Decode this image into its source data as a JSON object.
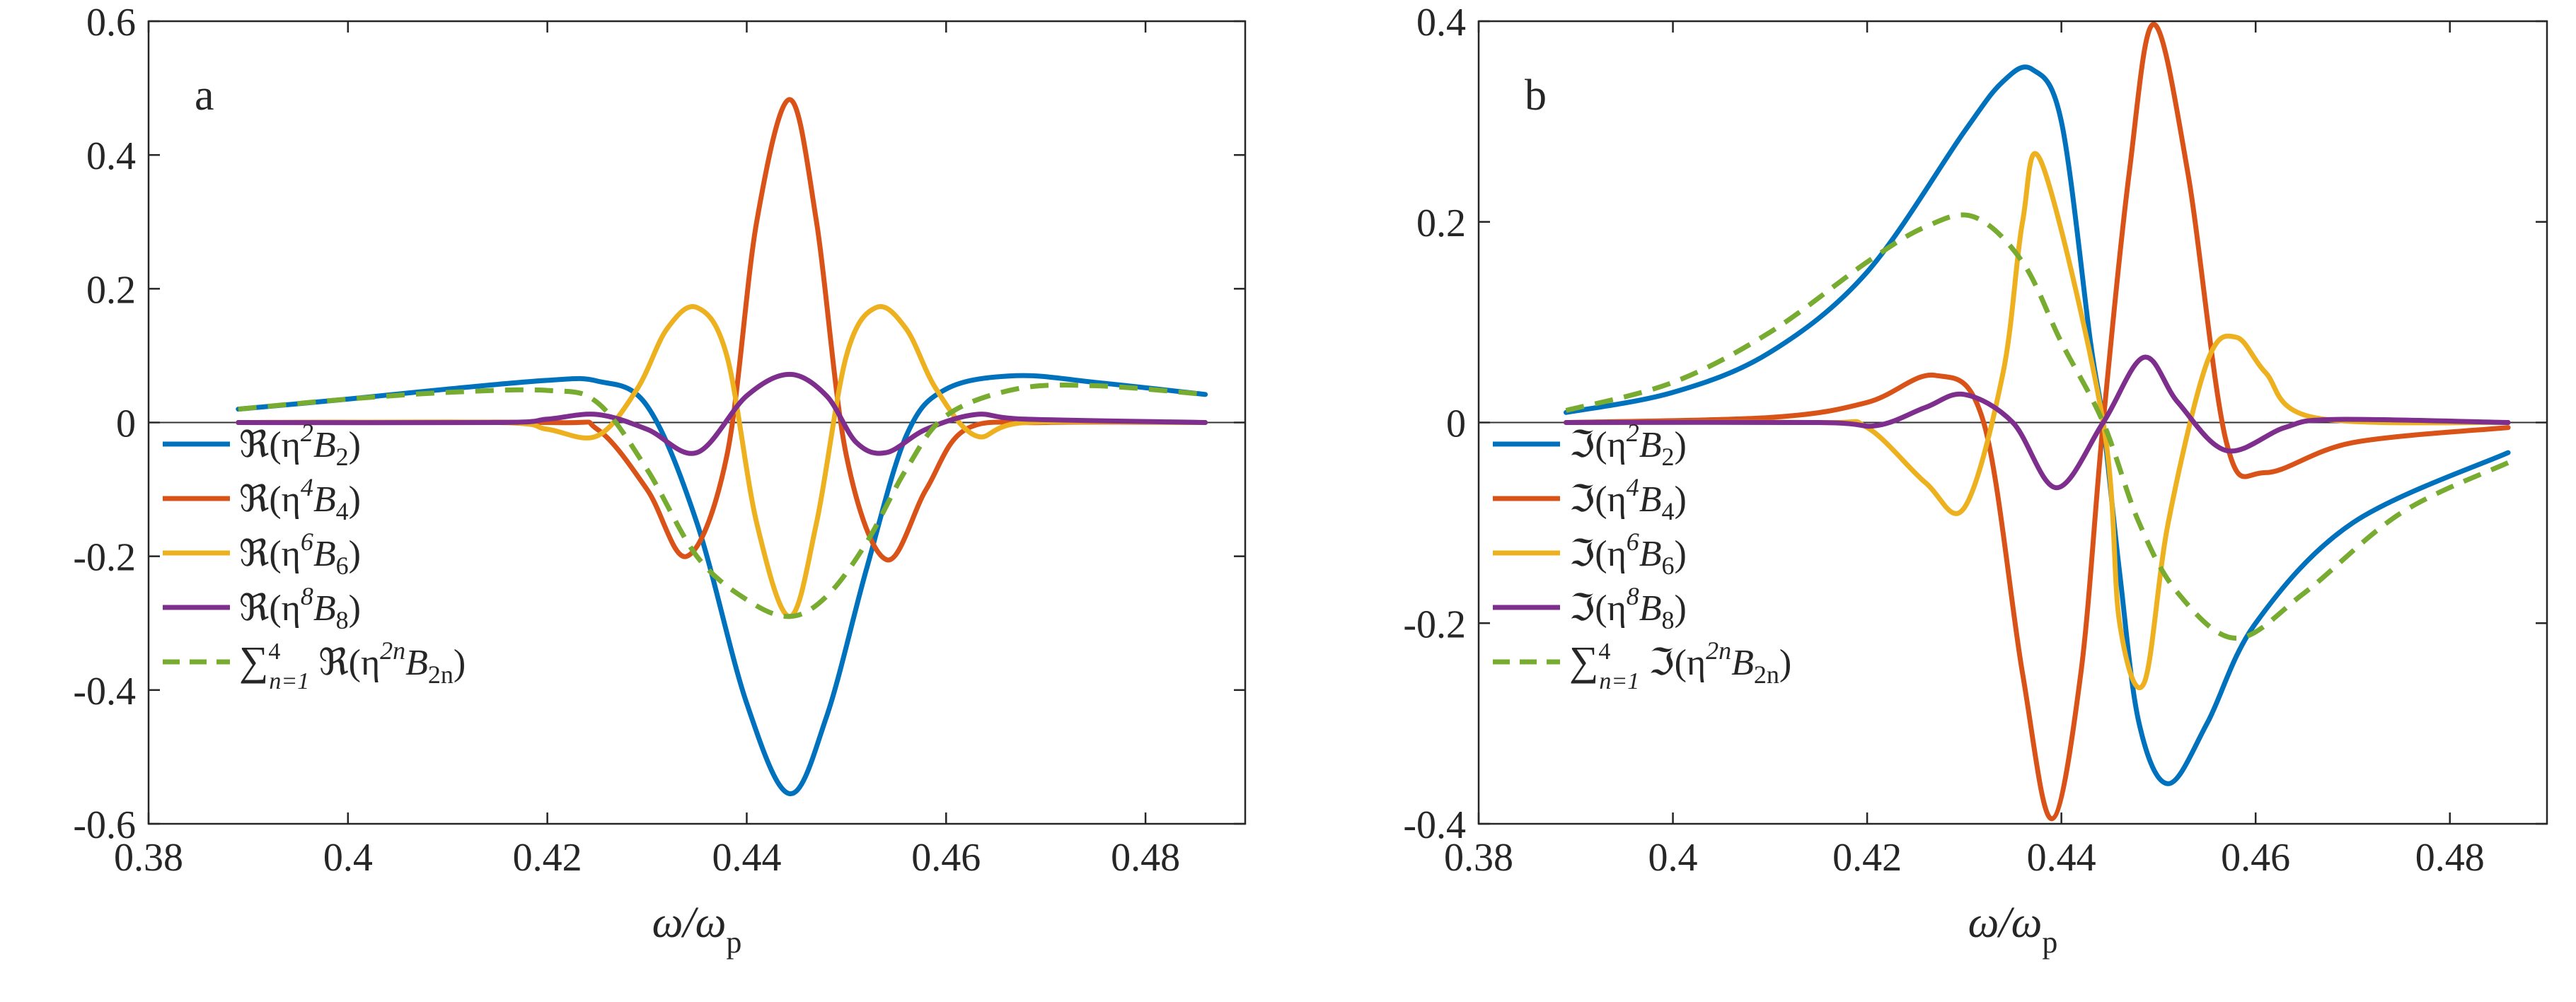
{
  "chart_data": [
    {
      "type": "line",
      "panel_label": "a",
      "xlabel": "ω/ω_p",
      "xlabel_parts": {
        "main": "ω/ω",
        "sub": "p"
      },
      "xlim": [
        0.38,
        0.49
      ],
      "ylim": [
        -0.6,
        0.6
      ],
      "xticks": [
        "0.38",
        "0.4",
        "0.42",
        "0.44",
        "0.46",
        "0.48"
      ],
      "yticks": [
        "-0.6",
        "-0.4",
        "-0.2",
        "0",
        "0.2",
        "0.4",
        "0.6"
      ],
      "zero_line": true,
      "legend_location": "lower-left",
      "series": [
        {
          "name": "ℜ(η²B₂)",
          "label": {
            "op": "ℜ",
            "pow": "2",
            "idx": "2"
          },
          "color": "#0072BD",
          "dash": false,
          "x": [
            0.389,
            0.4,
            0.41,
            0.42,
            0.425,
            0.43,
            0.435,
            0.44,
            0.4443,
            0.448,
            0.452,
            0.456,
            0.46,
            0.467,
            0.475,
            0.486
          ],
          "y": [
            0.02,
            0.035,
            0.05,
            0.063,
            0.062,
            0.025,
            -0.15,
            -0.42,
            -0.555,
            -0.44,
            -0.22,
            -0.02,
            0.05,
            0.07,
            0.06,
            0.042
          ]
        },
        {
          "name": "ℜ(η⁴B₄)",
          "label": {
            "op": "ℜ",
            "pow": "4",
            "idx": "4"
          },
          "color": "#D95319",
          "dash": false,
          "x": [
            0.389,
            0.42,
            0.425,
            0.43,
            0.434,
            0.438,
            0.441,
            0.4443,
            0.447,
            0.45,
            0.454,
            0.458,
            0.462,
            0.47,
            0.486
          ],
          "y": [
            0,
            0,
            -0.01,
            -0.1,
            -0.2,
            -0.05,
            0.3,
            0.483,
            0.3,
            -0.05,
            -0.205,
            -0.1,
            -0.01,
            0,
            0
          ]
        },
        {
          "name": "ℜ(η⁶B₆)",
          "label": {
            "op": "ℜ",
            "pow": "6",
            "idx": "6"
          },
          "color": "#EDB120",
          "dash": false,
          "x": [
            0.389,
            0.415,
            0.42,
            0.425,
            0.429,
            0.432,
            0.435,
            0.438,
            0.441,
            0.4443,
            0.447,
            0.45,
            0.453,
            0.456,
            0.459,
            0.463,
            0.468,
            0.486
          ],
          "y": [
            0,
            0,
            -0.01,
            -0.02,
            0.05,
            0.14,
            0.172,
            0.1,
            -0.15,
            -0.29,
            -0.15,
            0.1,
            0.172,
            0.14,
            0.05,
            -0.02,
            0,
            0
          ]
        },
        {
          "name": "ℜ(η⁸B₈)",
          "label": {
            "op": "ℜ",
            "pow": "8",
            "idx": "8"
          },
          "color": "#7E2F8E",
          "dash": false,
          "x": [
            0.389,
            0.415,
            0.42,
            0.425,
            0.43,
            0.435,
            0.44,
            0.4443,
            0.448,
            0.451,
            0.454,
            0.458,
            0.463,
            0.468,
            0.486
          ],
          "y": [
            0,
            0,
            0.005,
            0.012,
            -0.01,
            -0.045,
            0.04,
            0.072,
            0.04,
            -0.03,
            -0.045,
            -0.01,
            0.012,
            0.005,
            0
          ]
        },
        {
          "name": "Σ_{n=1}^{4} ℜ(η^{2n}B_{2n})",
          "label": {
            "sum": true,
            "op": "ℜ",
            "pow": "2n",
            "idx": "2n",
            "n_from": "n=1",
            "n_to": "4"
          },
          "color": "#77AC30",
          "dash": true,
          "x": [
            0.389,
            0.4,
            0.41,
            0.42,
            0.425,
            0.43,
            0.435,
            0.44,
            0.4443,
            0.448,
            0.452,
            0.456,
            0.46,
            0.467,
            0.475,
            0.486
          ],
          "y": [
            0.02,
            0.035,
            0.045,
            0.048,
            0.03,
            -0.07,
            -0.2,
            -0.265,
            -0.29,
            -0.26,
            -0.18,
            -0.07,
            0.01,
            0.05,
            0.055,
            0.042
          ]
        }
      ]
    },
    {
      "type": "line",
      "panel_label": "b",
      "xlabel": "ω/ω_p",
      "xlabel_parts": {
        "main": "ω/ω",
        "sub": "p"
      },
      "xlim": [
        0.38,
        0.49
      ],
      "ylim": [
        -0.4,
        0.4
      ],
      "xticks": [
        "0.38",
        "0.4",
        "0.42",
        "0.44",
        "0.46",
        "0.48"
      ],
      "yticks": [
        "-0.4",
        "-0.2",
        "0",
        "0.2",
        "0.4"
      ],
      "zero_line": true,
      "legend_location": "lower-left",
      "series": [
        {
          "name": "ℑ(η²B₂)",
          "label": {
            "op": "ℑ",
            "pow": "2",
            "idx": "2"
          },
          "color": "#0072BD",
          "dash": false,
          "x": [
            0.389,
            0.4,
            0.41,
            0.42,
            0.43,
            0.434,
            0.437,
            0.44,
            0.443,
            0.4443,
            0.446,
            0.448,
            0.451,
            0.455,
            0.46,
            0.47,
            0.486
          ],
          "y": [
            0.01,
            0.03,
            0.07,
            0.15,
            0.29,
            0.34,
            0.352,
            0.3,
            0.08,
            0,
            -0.15,
            -0.3,
            -0.36,
            -0.3,
            -0.2,
            -0.1,
            -0.03
          ]
        },
        {
          "name": "ℑ(η⁴B₄)",
          "label": {
            "op": "ℑ",
            "pow": "4",
            "idx": "4"
          },
          "color": "#D95319",
          "dash": false,
          "x": [
            0.389,
            0.41,
            0.42,
            0.427,
            0.432,
            0.436,
            0.439,
            0.442,
            0.4443,
            0.447,
            0.4495,
            0.453,
            0.457,
            0.461,
            0.47,
            0.486
          ],
          "y": [
            0,
            0.005,
            0.02,
            0.047,
            0,
            -0.25,
            -0.395,
            -0.25,
            0,
            0.25,
            0.397,
            0.25,
            -0.02,
            -0.05,
            -0.02,
            -0.005
          ]
        },
        {
          "name": "ℑ(η⁶B₆)",
          "label": {
            "op": "ℑ",
            "pow": "6",
            "idx": "6"
          },
          "color": "#EDB120",
          "dash": false,
          "x": [
            0.389,
            0.415,
            0.42,
            0.426,
            0.43,
            0.434,
            0.436,
            0.438,
            0.4443,
            0.446,
            0.4485,
            0.451,
            0.455,
            0.458,
            0.461,
            0.466,
            0.486
          ],
          "y": [
            0,
            0,
            -0.005,
            -0.06,
            -0.085,
            0.05,
            0.2,
            0.258,
            0,
            -0.2,
            -0.26,
            -0.1,
            0.06,
            0.085,
            0.05,
            0.005,
            0
          ]
        },
        {
          "name": "ℑ(η⁸B₈)",
          "label": {
            "op": "ℑ",
            "pow": "8",
            "idx": "8"
          },
          "color": "#7E2F8E",
          "dash": false,
          "x": [
            0.389,
            0.415,
            0.421,
            0.426,
            0.43,
            0.435,
            0.4395,
            0.4443,
            0.4485,
            0.452,
            0.457,
            0.463,
            0.468,
            0.486
          ],
          "y": [
            0,
            0,
            -0.003,
            0.015,
            0.028,
            0,
            -0.065,
            0,
            0.065,
            0.02,
            -0.028,
            -0.005,
            0.003,
            0
          ]
        },
        {
          "name": "Σ_{n=1}^{4} ℑ(η^{2n}B_{2n})",
          "label": {
            "sum": true,
            "op": "ℑ",
            "pow": "2n",
            "idx": "2n",
            "n_from": "n=1",
            "n_to": "4"
          },
          "color": "#77AC30",
          "dash": true,
          "x": [
            0.389,
            0.4,
            0.41,
            0.42,
            0.426,
            0.431,
            0.436,
            0.44,
            0.4443,
            0.448,
            0.452,
            0.458,
            0.465,
            0.475,
            0.486
          ],
          "y": [
            0.012,
            0.04,
            0.09,
            0.16,
            0.195,
            0.205,
            0.16,
            0.08,
            0,
            -0.1,
            -0.17,
            -0.215,
            -0.17,
            -0.09,
            -0.04
          ]
        }
      ]
    }
  ]
}
